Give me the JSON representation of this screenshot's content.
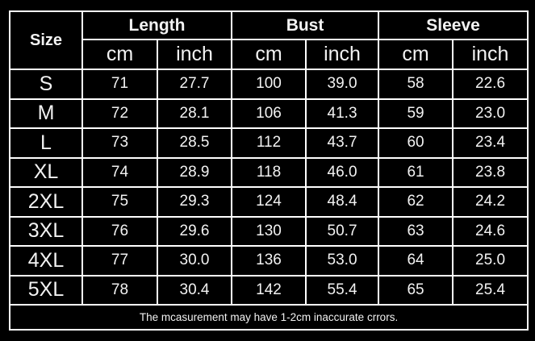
{
  "header": {
    "size": "Size",
    "groups": [
      "Length",
      "Bust",
      "Sleeve"
    ],
    "units": [
      "cm",
      "inch",
      "cm",
      "inch",
      "cm",
      "inch"
    ]
  },
  "rows": [
    {
      "size": "S",
      "values": [
        "71",
        "27.7",
        "100",
        "39.0",
        "58",
        "22.6"
      ]
    },
    {
      "size": "M",
      "values": [
        "72",
        "28.1",
        "106",
        "41.3",
        "59",
        "23.0"
      ]
    },
    {
      "size": "L",
      "values": [
        "73",
        "28.5",
        "112",
        "43.7",
        "60",
        "23.4"
      ]
    },
    {
      "size": "XL",
      "values": [
        "74",
        "28.9",
        "118",
        "46.0",
        "61",
        "23.8"
      ]
    },
    {
      "size": "2XL",
      "values": [
        "75",
        "29.3",
        "124",
        "48.4",
        "62",
        "24.2"
      ]
    },
    {
      "size": "3XL",
      "values": [
        "76",
        "29.6",
        "130",
        "50.7",
        "63",
        "24.6"
      ]
    },
    {
      "size": "4XL",
      "values": [
        "77",
        "30.0",
        "136",
        "53.0",
        "64",
        "25.0"
      ]
    },
    {
      "size": "5XL",
      "values": [
        "78",
        "30.4",
        "142",
        "55.4",
        "65",
        "25.4"
      ]
    }
  ],
  "footer": {
    "note": "The mcasurement may have 1-2cm inaccurate crrors."
  }
}
